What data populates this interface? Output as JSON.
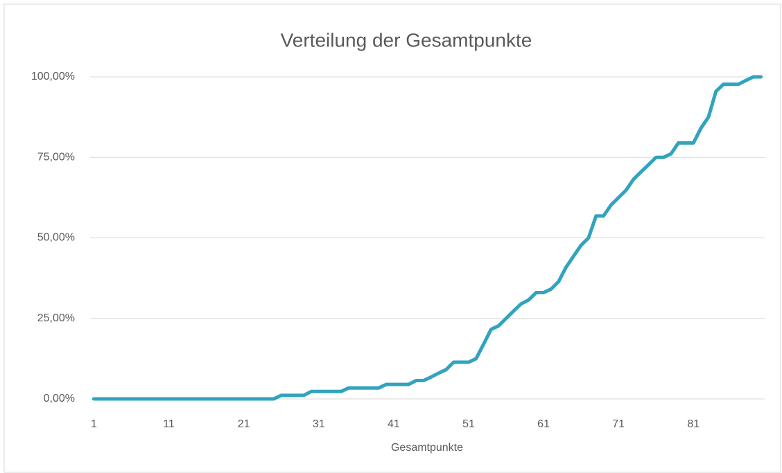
{
  "chart_data": {
    "type": "line",
    "title": "Verteilung der Gesamtpunkte",
    "x_label": "Gesamtpunkte",
    "categories": [
      1,
      null,
      null,
      null,
      null,
      null,
      null,
      null,
      null,
      null,
      11,
      null,
      null,
      null,
      null,
      null,
      null,
      null,
      null,
      null,
      21,
      null,
      null,
      null,
      null,
      null,
      null,
      null,
      null,
      null,
      31,
      null,
      null,
      null,
      null,
      null,
      null,
      null,
      null,
      null,
      41,
      null,
      null,
      null,
      null,
      null,
      null,
      null,
      null,
      null,
      51,
      null,
      null,
      null,
      null,
      null,
      null,
      null,
      null,
      null,
      61,
      null,
      null,
      null,
      null,
      null,
      null,
      null,
      null,
      null,
      71,
      null,
      null,
      null,
      null,
      null,
      null,
      null,
      null,
      null,
      81,
      null,
      null,
      null,
      null,
      null,
      null,
      null,
      null,
      null
    ],
    "values": [
      0,
      0,
      0,
      0,
      0,
      0,
      0,
      0,
      0,
      0,
      0,
      0,
      0,
      0,
      0,
      0,
      0,
      0,
      0,
      0,
      0,
      0,
      0,
      0,
      0,
      1.1,
      1.1,
      1.1,
      1.1,
      2.3,
      2.3,
      2.3,
      2.3,
      2.3,
      3.4,
      3.4,
      3.4,
      3.4,
      3.4,
      4.5,
      4.5,
      4.5,
      4.5,
      5.7,
      5.7,
      6.8,
      8.0,
      9.1,
      11.4,
      11.4,
      11.4,
      12.5,
      17.0,
      21.6,
      22.7,
      25.0,
      27.3,
      29.5,
      30.7,
      33.0,
      33.0,
      34.1,
      36.4,
      40.9,
      44.3,
      47.7,
      50.0,
      56.8,
      56.8,
      60.2,
      62.5,
      64.8,
      68.2,
      70.5,
      72.7,
      75.0,
      75.0,
      76.1,
      79.5,
      79.5,
      79.5,
      84.1,
      87.5,
      95.5,
      97.7,
      97.7,
      97.7,
      98.9,
      100,
      100
    ],
    "color": "#31a3bf",
    "ylim": [
      0,
      100
    ],
    "yticks": [
      {
        "value": 0,
        "label": "0,00%"
      },
      {
        "value": 25,
        "label": "25,00%"
      },
      {
        "value": 50,
        "label": "50,00%"
      },
      {
        "value": 75,
        "label": "75,00%"
      },
      {
        "value": 100,
        "label": "100,00%"
      }
    ],
    "grid": true
  }
}
